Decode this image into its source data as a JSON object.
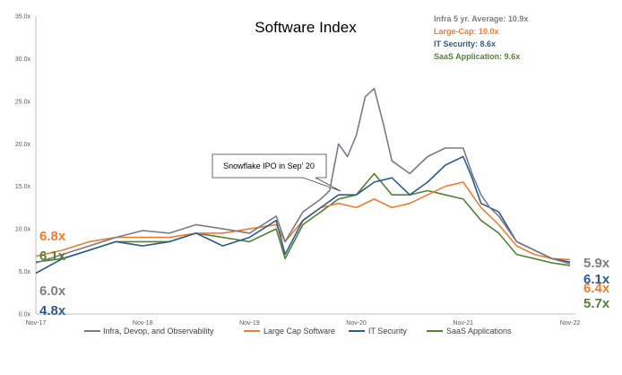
{
  "chart_data": {
    "type": "line",
    "title": "Software Index",
    "xlabel": "",
    "ylabel": "",
    "x_tick_labels": [
      "Nov-17",
      "Nov-18",
      "Nov-19",
      "Nov-20",
      "Nov-21",
      "Nov-22"
    ],
    "y_tick_labels": [
      "0.0x",
      "5.0x",
      "10.0x",
      "15.0x",
      "20.0x",
      "25.0x",
      "30.0x",
      "35.0x"
    ],
    "xlim": [
      "2017-11",
      "2022-11"
    ],
    "ylim": [
      0,
      35
    ],
    "grid": false,
    "legend_position": "bottom",
    "averages": [
      {
        "text": "Infra 5 yr. Average: 10.9x",
        "color": "#7f7f7f"
      },
      {
        "text": "Large-Cap: 10.0x",
        "color": "#ed7d31"
      },
      {
        "text": "IT Security: 8.6x",
        "color": "#2e5c8a"
      },
      {
        "text": "SaaS Application: 9.6x",
        "color": "#548235"
      }
    ],
    "annotation": "Snowflake IPO in Sep' 20",
    "series": [
      {
        "name": "Infra, Devop, and Observability",
        "color": "#7a7a8a",
        "start_label": "6.0x",
        "end_label": "5.9x",
        "x": [
          "2017-11",
          "2018-02",
          "2018-05",
          "2018-08",
          "2018-11",
          "2019-02",
          "2019-05",
          "2019-08",
          "2019-11",
          "2020-02",
          "2020-03",
          "2020-05",
          "2020-07",
          "2020-08",
          "2020-09",
          "2020-10",
          "2020-11",
          "2020-12",
          "2021-01",
          "2021-02",
          "2021-03",
          "2021-05",
          "2021-07",
          "2021-09",
          "2021-11",
          "2021-12",
          "2022-01",
          "2022-02",
          "2022-03",
          "2022-05",
          "2022-07",
          "2022-09",
          "2022-11"
        ],
        "y": [
          6.0,
          7.0,
          8.0,
          9.0,
          9.8,
          9.5,
          10.5,
          10.0,
          9.5,
          11.5,
          8.5,
          12.0,
          13.5,
          14.5,
          20.0,
          18.5,
          21.0,
          25.5,
          26.5,
          22.5,
          18.0,
          16.5,
          18.5,
          19.5,
          19.5,
          16.5,
          14.0,
          12.5,
          11.5,
          8.5,
          7.5,
          6.5,
          5.9
        ]
      },
      {
        "name": "Large Cap Software",
        "color": "#ed7d31",
        "start_label": "6.8x",
        "end_label": "6.4x",
        "x": [
          "2017-11",
          "2018-02",
          "2018-05",
          "2018-08",
          "2018-11",
          "2019-02",
          "2019-05",
          "2019-08",
          "2019-11",
          "2020-02",
          "2020-03",
          "2020-05",
          "2020-07",
          "2020-09",
          "2020-11",
          "2021-01",
          "2021-03",
          "2021-05",
          "2021-07",
          "2021-09",
          "2021-11",
          "2022-01",
          "2022-03",
          "2022-05",
          "2022-07",
          "2022-09",
          "2022-11"
        ],
        "y": [
          6.8,
          7.5,
          8.5,
          9.0,
          9.0,
          9.0,
          9.5,
          9.5,
          10.0,
          10.5,
          8.5,
          11.0,
          12.5,
          13.0,
          12.5,
          13.5,
          12.5,
          13.0,
          14.0,
          15.0,
          15.5,
          12.5,
          10.5,
          8.0,
          7.0,
          6.5,
          6.4
        ]
      },
      {
        "name": "IT Security",
        "color": "#2e5c8a",
        "start_label": "4.8x",
        "end_label": "6.1x",
        "x": [
          "2017-11",
          "2018-02",
          "2018-05",
          "2018-08",
          "2018-11",
          "2019-02",
          "2019-05",
          "2019-08",
          "2019-11",
          "2020-02",
          "2020-03",
          "2020-05",
          "2020-07",
          "2020-09",
          "2020-11",
          "2021-01",
          "2021-03",
          "2021-05",
          "2021-07",
          "2021-09",
          "2021-11",
          "2021-12",
          "2022-01",
          "2022-03",
          "2022-05",
          "2022-07",
          "2022-09",
          "2022-11"
        ],
        "y": [
          4.8,
          6.5,
          7.5,
          8.5,
          8.0,
          8.5,
          9.5,
          8.0,
          9.0,
          11.0,
          7.0,
          11.0,
          12.5,
          14.0,
          14.0,
          15.5,
          16.0,
          14.0,
          15.5,
          17.5,
          18.5,
          16.0,
          13.0,
          12.0,
          8.5,
          7.5,
          6.5,
          6.1
        ]
      },
      {
        "name": "SaaS Applications",
        "color": "#548235",
        "start_label": "6.1x",
        "end_label": "5.7x",
        "x": [
          "2017-11",
          "2018-02",
          "2018-05",
          "2018-08",
          "2018-11",
          "2019-02",
          "2019-05",
          "2019-08",
          "2019-11",
          "2020-02",
          "2020-03",
          "2020-05",
          "2020-07",
          "2020-09",
          "2020-11",
          "2021-01",
          "2021-03",
          "2021-05",
          "2021-07",
          "2021-09",
          "2021-11",
          "2022-01",
          "2022-03",
          "2022-05",
          "2022-07",
          "2022-09",
          "2022-11"
        ],
        "y": [
          6.1,
          6.5,
          7.5,
          8.5,
          8.5,
          8.5,
          9.5,
          9.0,
          8.5,
          10.0,
          6.5,
          10.5,
          12.0,
          13.5,
          14.0,
          16.5,
          14.0,
          14.0,
          14.5,
          14.0,
          13.5,
          11.0,
          9.5,
          7.0,
          6.5,
          6.0,
          5.7
        ]
      }
    ]
  }
}
